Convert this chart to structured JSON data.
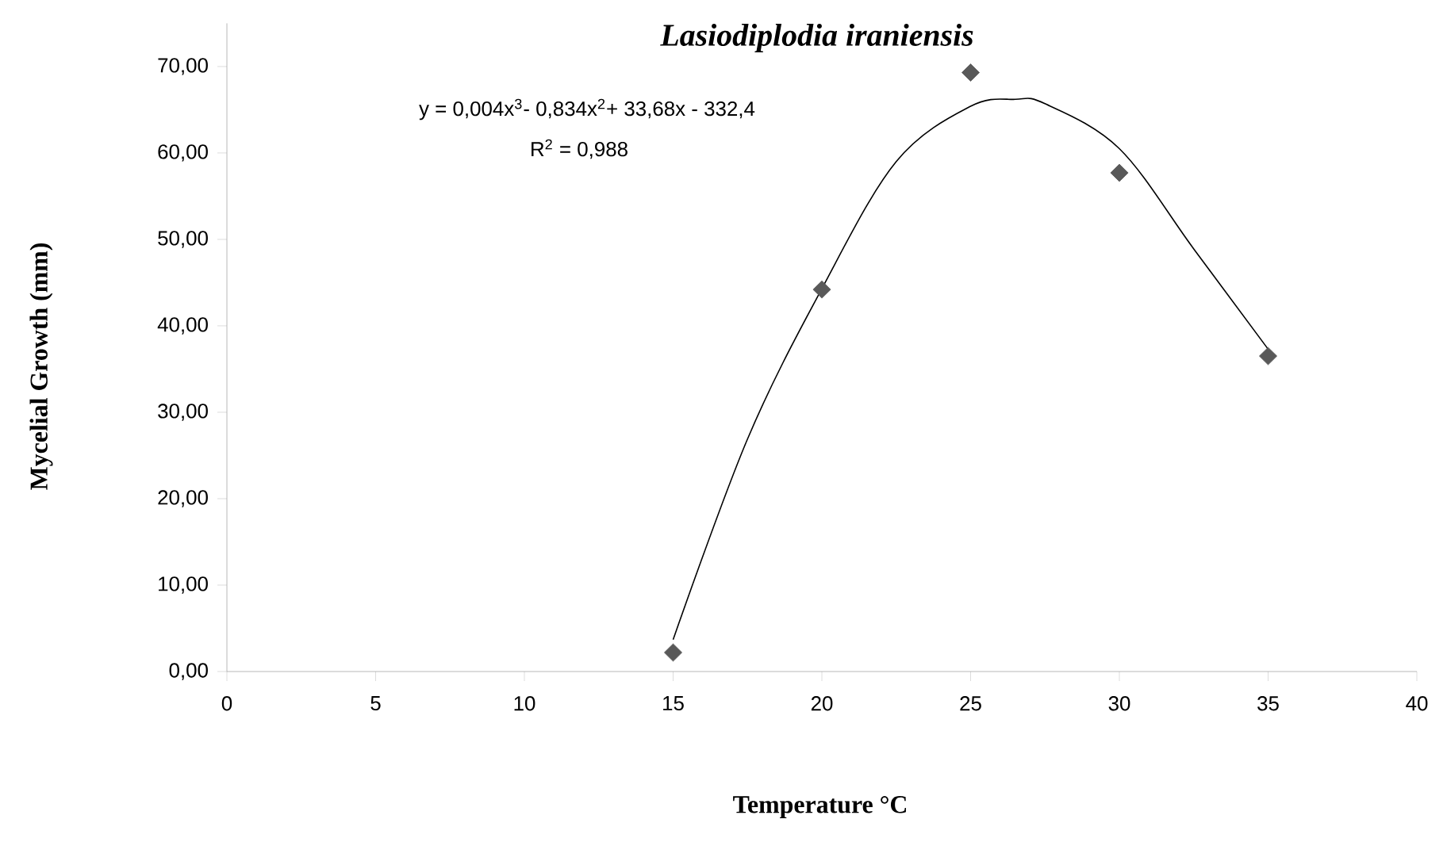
{
  "chart_data": {
    "type": "scatter",
    "title": "Lasiodiplodia iraniensis",
    "xlabel": "Temperature °C",
    "ylabel": "Mycelial Growth (mm)",
    "annotations": [
      "y = 0,004x$^{3}$- 0,834x$^{2}$+ 33,68x - 332,4",
      "R$^{2}$ = 0,988"
    ],
    "xlim": [
      0,
      40
    ],
    "xticks": [
      0,
      5,
      10,
      15,
      20,
      25,
      30,
      35,
      40
    ],
    "ylim": [
      0,
      75
    ],
    "yticks": [
      {
        "value": 0,
        "label": "0,00"
      },
      {
        "value": 10,
        "label": "10,00"
      },
      {
        "value": 20,
        "label": "20,00"
      },
      {
        "value": 30,
        "label": "30,00"
      },
      {
        "value": 40,
        "label": "40,00"
      },
      {
        "value": 50,
        "label": "50,00"
      },
      {
        "value": 60,
        "label": "60,00"
      },
      {
        "value": 70,
        "label": "70,00"
      }
    ],
    "series": [
      {
        "color": "#595959",
        "marker": "diamond",
        "x": [
          15,
          20,
          25,
          30,
          35
        ],
        "values": [
          2.2,
          44.2,
          69.3,
          57.7,
          36.5
        ]
      },
      {
        "type": "line",
        "color": "#000000",
        "marker": "none",
        "x": [
          15,
          17.5,
          20,
          22.5,
          25,
          26.5,
          27.5,
          30,
          32.5,
          35
        ],
        "values": [
          3.7,
          26.9,
          44.3,
          59,
          65.4,
          66.2,
          65.7,
          60.5,
          48.9,
          37.3
        ]
      }
    ]
  }
}
